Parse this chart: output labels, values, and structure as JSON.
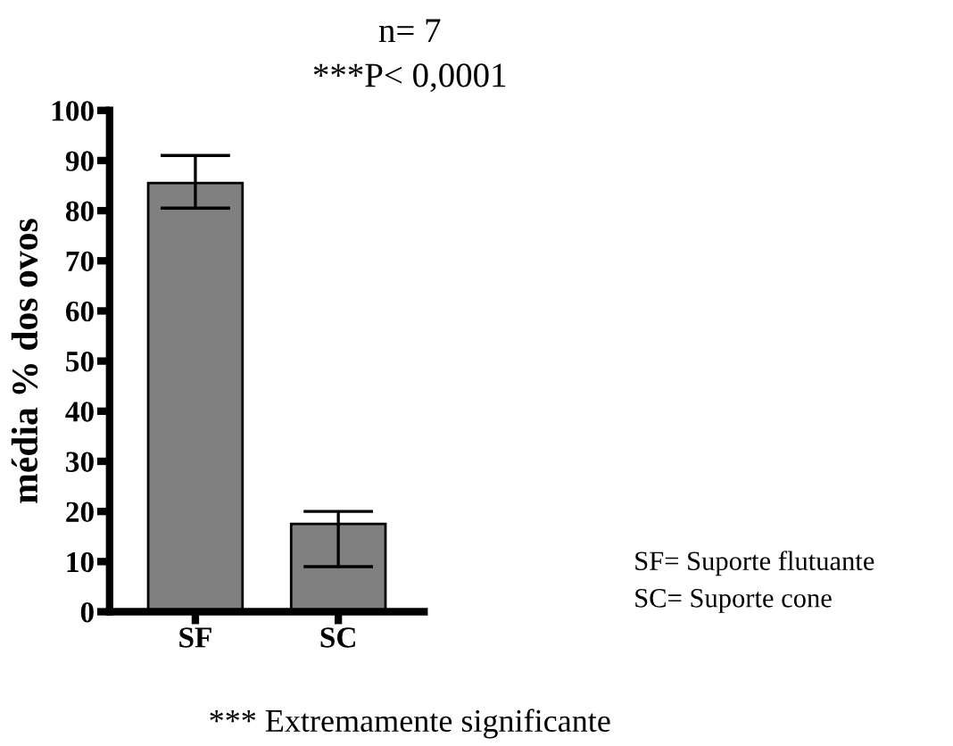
{
  "chart_data": {
    "type": "bar",
    "title": "n= 7",
    "subtitle": "***P< 0,0001",
    "ylabel": "média % dos ovos",
    "categories": [
      "SF",
      "SC"
    ],
    "values": [
      85.5,
      17.5
    ],
    "color": "#808080",
    "errors": [
      [
        80.5,
        91
      ],
      [
        9,
        20
      ]
    ],
    "ylim": [
      0,
      100
    ],
    "yticks": [
      0,
      10,
      20,
      30,
      40,
      50,
      60,
      70,
      80,
      90,
      100
    ],
    "grid": false,
    "annotations": [
      "SF= Suporte flutuante",
      "SC= Suporte cone",
      "*** Extremamente significante"
    ]
  }
}
